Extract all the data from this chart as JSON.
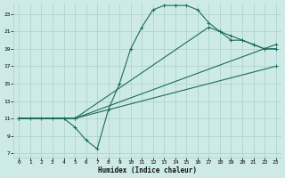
{
  "xlabel": "Humidex (Indice chaleur)",
  "bg_color": "#ceeae6",
  "grid_color": "#aacfcb",
  "line_color": "#1a6b5e",
  "xlim": [
    -0.5,
    23.5
  ],
  "ylim": [
    6.5,
    24.2
  ],
  "xticks": [
    0,
    1,
    2,
    3,
    4,
    5,
    6,
    7,
    8,
    9,
    10,
    11,
    12,
    13,
    14,
    15,
    16,
    17,
    18,
    19,
    20,
    21,
    22,
    23
  ],
  "yticks": [
    7,
    9,
    11,
    13,
    15,
    17,
    19,
    21,
    23
  ],
  "curve1_x": [
    0,
    1,
    2,
    3,
    4,
    5,
    6,
    7,
    8,
    9,
    10,
    11,
    12,
    13,
    14,
    15,
    16,
    17,
    18,
    19,
    20,
    21,
    22,
    23
  ],
  "curve1_y": [
    11,
    11,
    11,
    11,
    11,
    10,
    8.5,
    7.5,
    12,
    15,
    19,
    21.5,
    23.5,
    24,
    24,
    24,
    23.5,
    22,
    21,
    20,
    20,
    19.5,
    19,
    19
  ],
  "curve2_x": [
    0,
    5,
    23
  ],
  "curve2_y": [
    11,
    11,
    17
  ],
  "curve3_x": [
    0,
    5,
    23
  ],
  "curve3_y": [
    11,
    11,
    19.5
  ],
  "curve4_x": [
    0,
    5,
    17,
    18,
    19,
    20,
    21,
    22,
    23
  ],
  "curve4_y": [
    11,
    11,
    21.5,
    21,
    20.5,
    20,
    19.5,
    19,
    19
  ]
}
